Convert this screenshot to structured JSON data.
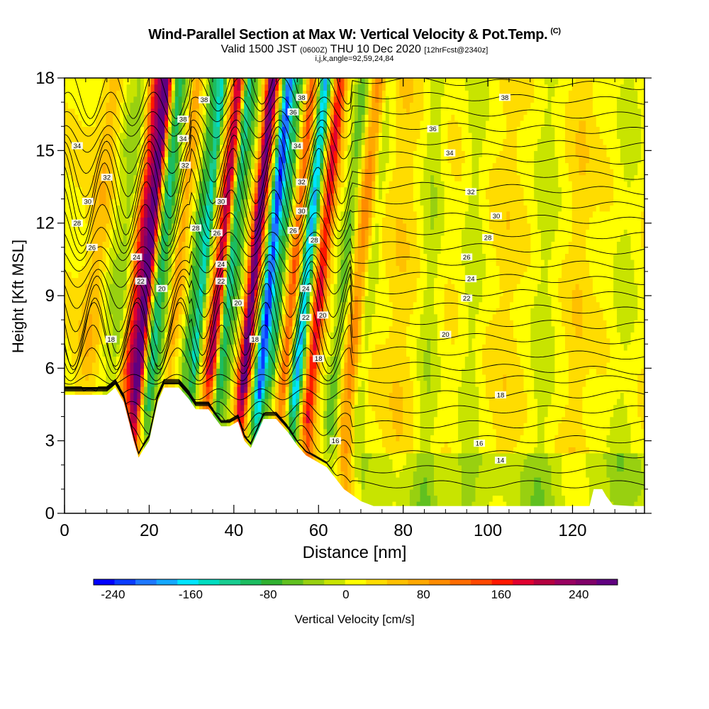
{
  "header": {
    "title": "Wind-Parallel Section at Max W: Vertical Velocity & Pot.Temp.",
    "copyright": "(C)",
    "valid_prefix": "Valid 1500 JST",
    "valid_z": "(0600Z)",
    "valid_date": "THU 10 Dec 2020",
    "forecast": "[12hrFcst@2340z]",
    "indices": "i,j,k,angle=92,59,24,84"
  },
  "chart_data": {
    "type": "heatmap",
    "xlabel": "Distance [nm]",
    "ylabel": "Height [Kft MSL]",
    "xlim": [
      0,
      137
    ],
    "ylim": [
      0,
      18
    ],
    "x_ticks": [
      "0",
      "20",
      "40",
      "60",
      "80",
      "100",
      "120"
    ],
    "y_ticks": [
      "0",
      "3",
      "6",
      "9",
      "12",
      "15",
      "18"
    ],
    "colorbar": {
      "label": "Vertical Velocity [cm/s]",
      "tick_labels": [
        "-240",
        "-160",
        "-80",
        "0",
        "80",
        "160",
        "240"
      ],
      "min": -260,
      "max": 280,
      "colors": [
        "#0000ff",
        "#0a3cff",
        "#1e78ff",
        "#14a8ff",
        "#00e4ff",
        "#00dcc0",
        "#18cc90",
        "#1cbc60",
        "#30b030",
        "#60c020",
        "#98d010",
        "#c8e400",
        "#ffff00",
        "#ffdc00",
        "#ffc000",
        "#ffa800",
        "#ff8c00",
        "#ff6c00",
        "#ff4800",
        "#ff1800",
        "#e00030",
        "#b40040",
        "#980060",
        "#800068",
        "#600080"
      ]
    },
    "terrain_top_kft": [
      [
        0,
        4.9
      ],
      [
        10,
        4.9
      ],
      [
        12,
        5.2
      ],
      [
        14,
        4.6
      ],
      [
        15.5,
        3.6
      ],
      [
        16.5,
        2.9
      ],
      [
        17.5,
        2.3
      ],
      [
        18.5,
        2.6
      ],
      [
        20,
        3.0
      ],
      [
        22,
        4.6
      ],
      [
        23.5,
        5.2
      ],
      [
        27,
        5.2
      ],
      [
        29.5,
        4.7
      ],
      [
        31,
        4.3
      ],
      [
        34,
        4.3
      ],
      [
        37,
        3.6
      ],
      [
        39,
        3.6
      ],
      [
        41,
        3.8
      ],
      [
        42.5,
        3.0
      ],
      [
        44,
        2.7
      ],
      [
        45,
        3.1
      ],
      [
        47,
        3.9
      ],
      [
        50,
        3.9
      ],
      [
        53,
        3.3
      ],
      [
        55,
        2.8
      ],
      [
        57,
        2.4
      ],
      [
        62,
        1.9
      ],
      [
        66,
        1.0
      ],
      [
        70,
        0.5
      ],
      [
        73,
        0.3
      ],
      [
        90,
        0.3
      ],
      [
        124,
        0.3
      ],
      [
        125,
        1.0
      ],
      [
        127,
        1.0
      ],
      [
        128,
        0.7
      ],
      [
        129.5,
        0.35
      ],
      [
        134,
        0.3
      ],
      [
        137,
        0.3
      ]
    ],
    "velocity_bands": [
      {
        "x": 4,
        "w": 2.5,
        "v": 40
      },
      {
        "x": 8,
        "w": 1.5,
        "v": -30
      },
      {
        "x": 10.5,
        "w": 1.6,
        "v": -50
      },
      {
        "x": 14.5,
        "w": 1.8,
        "v": 170
      },
      {
        "x": 16.5,
        "w": 1.2,
        "v": 230
      },
      {
        "x": 19.5,
        "w": 1.3,
        "v": -120
      },
      {
        "x": 21.5,
        "w": 1.2,
        "v": -50
      },
      {
        "x": 23.5,
        "w": 1.5,
        "v": 60
      },
      {
        "x": 27.5,
        "w": 1.2,
        "v": -90
      },
      {
        "x": 29.5,
        "w": 1.1,
        "v": -150
      },
      {
        "x": 33.5,
        "w": 1.5,
        "v": 200
      },
      {
        "x": 35.8,
        "w": 1.3,
        "v": -140
      },
      {
        "x": 37.8,
        "w": 1.1,
        "v": -60
      },
      {
        "x": 41.5,
        "w": 1.4,
        "v": 260
      },
      {
        "x": 45.5,
        "w": 1.5,
        "v": -250
      },
      {
        "x": 48,
        "w": 1.0,
        "v": -90
      },
      {
        "x": 51,
        "w": 1.2,
        "v": 110
      },
      {
        "x": 54,
        "w": 1.4,
        "v": -190
      },
      {
        "x": 57.5,
        "w": 1.5,
        "v": 160
      },
      {
        "x": 63,
        "w": 1.8,
        "v": -70
      },
      {
        "x": 66.5,
        "w": 2.0,
        "v": 80
      },
      {
        "x": 69,
        "w": 1.6,
        "v": -40
      },
      {
        "x": 78,
        "w": 3,
        "v": 20
      },
      {
        "x": 85,
        "w": 2.5,
        "v": -35
      },
      {
        "x": 95,
        "w": 2.5,
        "v": -30
      },
      {
        "x": 103,
        "w": 3,
        "v": 15
      },
      {
        "x": 112,
        "w": 3,
        "v": -30
      },
      {
        "x": 120,
        "w": 2.5,
        "v": 20
      },
      {
        "x": 131,
        "w": 3,
        "v": -25
      }
    ],
    "contour_labels": [
      {
        "x": 33,
        "y": 17.1,
        "t": "38"
      },
      {
        "x": 56,
        "y": 17.2,
        "t": "38"
      },
      {
        "x": 104,
        "y": 17.2,
        "t": "38"
      },
      {
        "x": 28,
        "y": 16.3,
        "t": "38"
      },
      {
        "x": 54,
        "y": 16.6,
        "t": "36"
      },
      {
        "x": 87,
        "y": 15.9,
        "t": "36"
      },
      {
        "x": 3,
        "y": 15.2,
        "t": "34"
      },
      {
        "x": 28,
        "y": 15.5,
        "t": "34"
      },
      {
        "x": 55,
        "y": 15.2,
        "t": "34"
      },
      {
        "x": 91,
        "y": 14.9,
        "t": "34"
      },
      {
        "x": 10,
        "y": 13.9,
        "t": "32"
      },
      {
        "x": 28.5,
        "y": 14.4,
        "t": "32"
      },
      {
        "x": 56,
        "y": 13.7,
        "t": "32"
      },
      {
        "x": 96,
        "y": 13.3,
        "t": "32"
      },
      {
        "x": 5.5,
        "y": 12.9,
        "t": "30"
      },
      {
        "x": 37,
        "y": 12.9,
        "t": "30"
      },
      {
        "x": 56,
        "y": 12.5,
        "t": "30"
      },
      {
        "x": 102,
        "y": 12.3,
        "t": "30"
      },
      {
        "x": 3,
        "y": 12.0,
        "t": "28"
      },
      {
        "x": 31,
        "y": 11.8,
        "t": "28"
      },
      {
        "x": 59,
        "y": 11.3,
        "t": "28"
      },
      {
        "x": 100,
        "y": 11.4,
        "t": "28"
      },
      {
        "x": 6.5,
        "y": 11.0,
        "t": "26"
      },
      {
        "x": 36,
        "y": 11.6,
        "t": "26"
      },
      {
        "x": 54,
        "y": 11.7,
        "t": "26"
      },
      {
        "x": 95,
        "y": 10.6,
        "t": "26"
      },
      {
        "x": 17,
        "y": 10.6,
        "t": "24"
      },
      {
        "x": 37,
        "y": 10.3,
        "t": "24"
      },
      {
        "x": 57,
        "y": 9.3,
        "t": "24"
      },
      {
        "x": 96,
        "y": 9.7,
        "t": "24"
      },
      {
        "x": 18,
        "y": 9.6,
        "t": "22"
      },
      {
        "x": 37,
        "y": 9.6,
        "t": "22"
      },
      {
        "x": 57,
        "y": 8.1,
        "t": "22"
      },
      {
        "x": 95,
        "y": 8.9,
        "t": "22"
      },
      {
        "x": 23,
        "y": 9.3,
        "t": "20"
      },
      {
        "x": 41,
        "y": 8.7,
        "t": "20"
      },
      {
        "x": 61,
        "y": 8.2,
        "t": "20"
      },
      {
        "x": 90,
        "y": 7.4,
        "t": "20"
      },
      {
        "x": 11,
        "y": 7.2,
        "t": "18"
      },
      {
        "x": 45,
        "y": 7.2,
        "t": "18"
      },
      {
        "x": 60,
        "y": 6.4,
        "t": "18"
      },
      {
        "x": 103,
        "y": 4.9,
        "t": "18"
      },
      {
        "x": 64,
        "y": 3.0,
        "t": "16"
      },
      {
        "x": 98,
        "y": 2.9,
        "t": "16"
      },
      {
        "x": 103,
        "y": 2.2,
        "t": "14"
      }
    ]
  }
}
